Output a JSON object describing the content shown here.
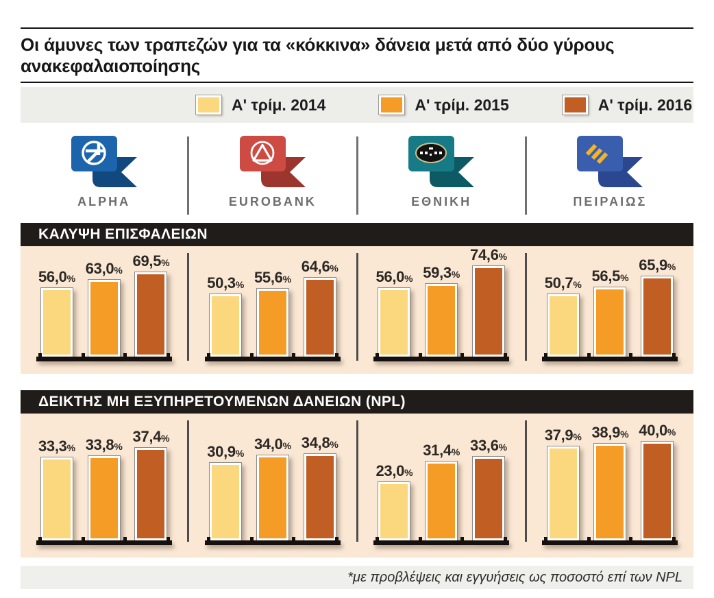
{
  "title": "Οι άμυνες των τραπεζών για τα «κόκκινα» δάνεια μετά από δύο γύρους ανακεφαλαιοποίησης",
  "footnote": "*με προβλέψεις και εγγυήσεις ως ποσοστό επί των NPL",
  "legend": [
    {
      "label": "Α' τρίμ. 2014",
      "color": "#fbd77d"
    },
    {
      "label": "Α' τρίμ. 2015",
      "color": "#f59c27"
    },
    {
      "label": "Α' τρίμ. 2016",
      "color": "#c05e24"
    }
  ],
  "banks": [
    {
      "name": "ALPHA",
      "flag_color": "#1c64ac",
      "fold_color": "#11497f",
      "emblem": "circle-cross",
      "emblem_color": "#ffffff"
    },
    {
      "name": "EUROBANK",
      "flag_color": "#cd4b42",
      "fold_color": "#9c352e",
      "emblem": "circle-triangle",
      "emblem_color": "#ffffff"
    },
    {
      "name": "ΕΘΝΙΚΗ",
      "flag_color": "#167a87",
      "fold_color": "#0e5a64",
      "emblem": "oval-building",
      "emblem_color": "#cfc08d"
    },
    {
      "name": "ΠΕΙΡΑΙΩΣ",
      "flag_color": "#3a5eae",
      "fold_color": "#2a478f",
      "emblem": "stripes",
      "emblem_color": "#f2b52a"
    }
  ],
  "chart_data": [
    {
      "type": "bar",
      "title": "ΚΑΛΥΨΗ ΕΠΙΣΦΑΛΕΙΩΝ",
      "unit": "%",
      "decimal_separator": ",",
      "categories": [
        "ALPHA",
        "EUROBANK",
        "ΕΘΝΙΚΗ",
        "ΠΕΙΡΑΙΩΣ"
      ],
      "series": [
        {
          "name": "Α' τρίμ. 2014",
          "values": [
            56.0,
            50.3,
            56.0,
            50.7
          ]
        },
        {
          "name": "Α' τρίμ. 2015",
          "values": [
            63.0,
            55.6,
            59.3,
            56.5
          ]
        },
        {
          "name": "Α' τρίμ. 2016",
          "values": [
            69.5,
            64.6,
            74.6,
            65.9
          ]
        }
      ],
      "ylim": [
        0,
        80
      ],
      "grid": false,
      "value_labels": true,
      "legend_position": "top"
    },
    {
      "type": "bar",
      "title": "ΔΕΙΚΤΗΣ ΜΗ ΕΞΥΠΗΡΕΤΟΥΜΕΝΩΝ ΔΑΝΕΙΩΝ (NPL)",
      "unit": "%",
      "decimal_separator": ",",
      "categories": [
        "ALPHA",
        "EUROBANK",
        "ΕΘΝΙΚΗ",
        "ΠΕΙΡΑΙΩΣ"
      ],
      "series": [
        {
          "name": "Α' τρίμ. 2014",
          "values": [
            33.3,
            30.9,
            23.0,
            37.9
          ]
        },
        {
          "name": "Α' τρίμ. 2015",
          "values": [
            33.8,
            34.0,
            31.4,
            38.9
          ]
        },
        {
          "name": "Α' τρίμ. 2016",
          "values": [
            37.4,
            34.8,
            33.6,
            40.0
          ]
        }
      ],
      "ylim": [
        0,
        45
      ],
      "grid": false,
      "value_labels": true,
      "legend_position": "top"
    }
  ]
}
